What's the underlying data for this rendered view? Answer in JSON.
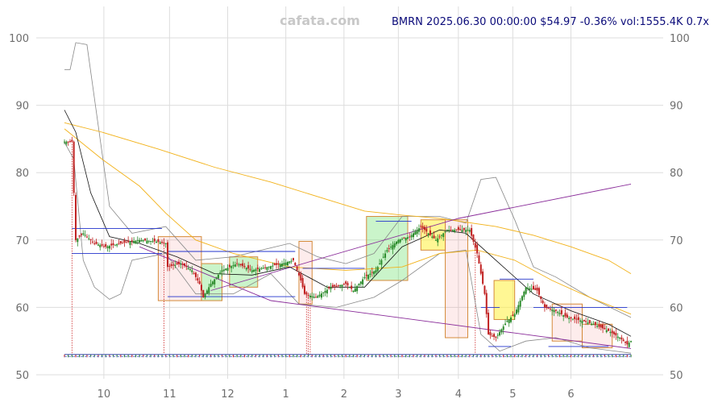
{
  "header": {
    "watermark": "cafata.com",
    "info": "BMRN 2025.06.30 00:00:00 $54.97 -0.36% vol:1555.4K 0.7x"
  },
  "chart_data": {
    "type": "candlestick",
    "ticker": "BMRN",
    "y_ticks_left": [
      "100",
      "90",
      "80",
      "70",
      "60",
      "50"
    ],
    "y_ticks_right": [
      "100",
      "90",
      "80",
      "70",
      "60",
      "50"
    ],
    "x_ticks": [
      "10",
      "11",
      "12",
      "1",
      "2",
      "3",
      "4",
      "5",
      "6"
    ],
    "ylim": [
      50,
      100
    ],
    "grid": true,
    "last_close": 54.97,
    "change_pct": -0.36,
    "volume": "1555.4K",
    "volume_ratio": "0.7x",
    "price_path": [
      [
        0,
        84.6
      ],
      [
        4,
        84.6
      ],
      [
        5,
        77.0
      ],
      [
        6,
        70.0
      ],
      [
        10,
        71.0
      ],
      [
        16,
        69.5
      ],
      [
        22,
        69.0
      ],
      [
        30,
        69.5
      ],
      [
        40,
        70.0
      ],
      [
        48,
        69.8
      ],
      [
        54,
        69.5
      ],
      [
        55,
        66.0
      ],
      [
        62,
        66.5
      ],
      [
        68,
        65.5
      ],
      [
        72,
        63.5
      ],
      [
        74,
        61.5
      ],
      [
        78,
        63.5
      ],
      [
        84,
        65.5
      ],
      [
        92,
        66.5
      ],
      [
        100,
        65.5
      ],
      [
        108,
        66.0
      ],
      [
        116,
        66.5
      ],
      [
        122,
        67.0
      ],
      [
        126,
        64.0
      ],
      [
        128,
        62.0
      ],
      [
        134,
        61.5
      ],
      [
        142,
        63.0
      ],
      [
        150,
        63.5
      ],
      [
        154,
        62.5
      ],
      [
        160,
        64.5
      ],
      [
        166,
        65.5
      ],
      [
        172,
        68.5
      ],
      [
        178,
        70.0
      ],
      [
        184,
        70.5
      ],
      [
        190,
        72.0
      ],
      [
        194,
        71.0
      ],
      [
        198,
        70.0
      ],
      [
        204,
        71.5
      ],
      [
        210,
        71.5
      ],
      [
        216,
        71.5
      ],
      [
        220,
        68.0
      ],
      [
        224,
        62.0
      ],
      [
        226,
        56.0
      ],
      [
        230,
        55.5
      ],
      [
        236,
        58.0
      ],
      [
        240,
        59.0
      ],
      [
        246,
        63.0
      ],
      [
        252,
        62.5
      ],
      [
        256,
        60.0
      ],
      [
        262,
        59.5
      ],
      [
        268,
        58.5
      ],
      [
        276,
        58.0
      ],
      [
        282,
        57.5
      ],
      [
        290,
        56.5
      ],
      [
        296,
        55.5
      ],
      [
        300,
        54.5
      ],
      [
        302,
        55.0
      ]
    ],
    "overlays": {
      "moving_average_short": [
        [
          0,
          89.3
        ],
        [
          6,
          86.0
        ],
        [
          14,
          77.0
        ],
        [
          24,
          70.5
        ],
        [
          40,
          69.5
        ],
        [
          60,
          67.5
        ],
        [
          80,
          65.0
        ],
        [
          100,
          64.8
        ],
        [
          120,
          66.0
        ],
        [
          140,
          63.0
        ],
        [
          160,
          63.0
        ],
        [
          180,
          69.0
        ],
        [
          200,
          71.5
        ],
        [
          214,
          71.0
        ],
        [
          230,
          67.0
        ],
        [
          250,
          62.0
        ],
        [
          270,
          59.5
        ],
        [
          290,
          57.5
        ],
        [
          302,
          55.7
        ]
      ],
      "moving_average_medium": [
        [
          0,
          86.5
        ],
        [
          20,
          82.0
        ],
        [
          40,
          78.0
        ],
        [
          54,
          74.0
        ],
        [
          70,
          70.0
        ],
        [
          90,
          68.0
        ],
        [
          120,
          66.0
        ],
        [
          150,
          65.5
        ],
        [
          180,
          66.0
        ],
        [
          200,
          68.0
        ],
        [
          220,
          68.5
        ],
        [
          240,
          67.0
        ],
        [
          260,
          64.0
        ],
        [
          280,
          61.5
        ],
        [
          302,
          59.0
        ]
      ],
      "moving_average_long": [
        [
          0,
          87.4
        ],
        [
          20,
          86.0
        ],
        [
          50,
          83.5
        ],
        [
          80,
          80.8
        ],
        [
          110,
          78.6
        ],
        [
          140,
          76.0
        ],
        [
          160,
          74.3
        ],
        [
          180,
          73.7
        ],
        [
          200,
          73.2
        ],
        [
          230,
          72.0
        ],
        [
          250,
          70.7
        ],
        [
          270,
          69.0
        ],
        [
          290,
          67.0
        ],
        [
          302,
          65.0
        ]
      ],
      "bollinger_upper": [
        [
          0,
          95.3
        ],
        [
          3,
          95.3
        ],
        [
          6,
          99.3
        ],
        [
          12,
          99.0
        ],
        [
          18,
          87.0
        ],
        [
          24,
          75.0
        ],
        [
          36,
          71.0
        ],
        [
          54,
          72.0
        ],
        [
          70,
          67.0
        ],
        [
          90,
          67.5
        ],
        [
          120,
          69.5
        ],
        [
          135,
          67.5
        ],
        [
          150,
          66.5
        ],
        [
          165,
          68.0
        ],
        [
          180,
          73.5
        ],
        [
          200,
          73.5
        ],
        [
          214,
          72.5
        ],
        [
          222,
          79.0
        ],
        [
          230,
          79.3
        ],
        [
          240,
          73.0
        ],
        [
          250,
          66.0
        ],
        [
          262,
          64.5
        ],
        [
          280,
          61.5
        ],
        [
          302,
          58.5
        ]
      ],
      "bollinger_lower": [
        [
          0,
          84.5
        ],
        [
          5,
          82.0
        ],
        [
          10,
          67.0
        ],
        [
          16,
          63.0
        ],
        [
          24,
          61.2
        ],
        [
          30,
          62.0
        ],
        [
          36,
          67.0
        ],
        [
          54,
          68.0
        ],
        [
          70,
          62.0
        ],
        [
          90,
          62.0
        ],
        [
          110,
          65.0
        ],
        [
          125,
          60.5
        ],
        [
          145,
          60.0
        ],
        [
          165,
          61.5
        ],
        [
          180,
          64.0
        ],
        [
          200,
          68.0
        ],
        [
          214,
          68.5
        ],
        [
          222,
          56.0
        ],
        [
          232,
          53.5
        ],
        [
          246,
          55.0
        ],
        [
          262,
          55.5
        ],
        [
          280,
          54.0
        ],
        [
          302,
          53.2
        ]
      ],
      "trendline_upper": [
        [
          78,
          62.5
        ],
        [
          210,
          73.2
        ],
        [
          302,
          78.3
        ]
      ],
      "trendline_lower": [
        [
          40,
          69.0
        ],
        [
          110,
          61.0
        ],
        [
          302,
          53.9
        ]
      ]
    },
    "consolidation_boxes": [
      {
        "x0": 50,
        "x1": 73,
        "y_low": 61.0,
        "y_high": 70.5,
        "kind": "down"
      },
      {
        "x0": 73,
        "x1": 84,
        "y_low": 61.0,
        "y_high": 66.5,
        "kind": "up"
      },
      {
        "x0": 88,
        "x1": 103,
        "y_low": 63.0,
        "y_high": 67.5,
        "kind": "up"
      },
      {
        "x0": 125,
        "x1": 132,
        "y_low": 60.5,
        "y_high": 69.8,
        "kind": "down"
      },
      {
        "x0": 161,
        "x1": 183,
        "y_low": 64.0,
        "y_high": 73.5,
        "kind": "up"
      },
      {
        "x0": 190,
        "x1": 203,
        "y_low": 68.5,
        "y_high": 73.0,
        "kind": "flat"
      },
      {
        "x0": 203,
        "x1": 215,
        "y_low": 55.5,
        "y_high": 73.0,
        "kind": "down"
      },
      {
        "x0": 229,
        "x1": 240,
        "y_low": 58.2,
        "y_high": 64.0,
        "kind": "flat"
      },
      {
        "x0": 260,
        "x1": 276,
        "y_low": 55.0,
        "y_high": 60.5,
        "kind": "down"
      },
      {
        "x0": 276,
        "x1": 292,
        "y_low": 54.0,
        "y_high": 57.5,
        "kind": "down"
      }
    ],
    "support_resistance_lines": [
      {
        "x0": 4,
        "x1": 52,
        "y": 71.7
      },
      {
        "x0": 4,
        "x1": 52,
        "y": 68.0
      },
      {
        "x0": 55,
        "x1": 123,
        "y": 68.3
      },
      {
        "x0": 55,
        "x1": 123,
        "y": 61.6
      },
      {
        "x0": 127,
        "x1": 160,
        "y": 65.8
      },
      {
        "x0": 166,
        "x1": 185,
        "y": 72.8
      },
      {
        "x0": 222,
        "x1": 232,
        "y": 60.0
      },
      {
        "x0": 232,
        "x1": 250,
        "y": 64.2
      },
      {
        "x0": 250,
        "x1": 300,
        "y": 60.0
      },
      {
        "x0": 258,
        "x1": 290,
        "y": 54.2
      },
      {
        "x0": 226,
        "x1": 238,
        "y": 54.2
      }
    ],
    "event_markers": [
      4,
      53,
      129,
      130,
      131,
      219
    ]
  }
}
